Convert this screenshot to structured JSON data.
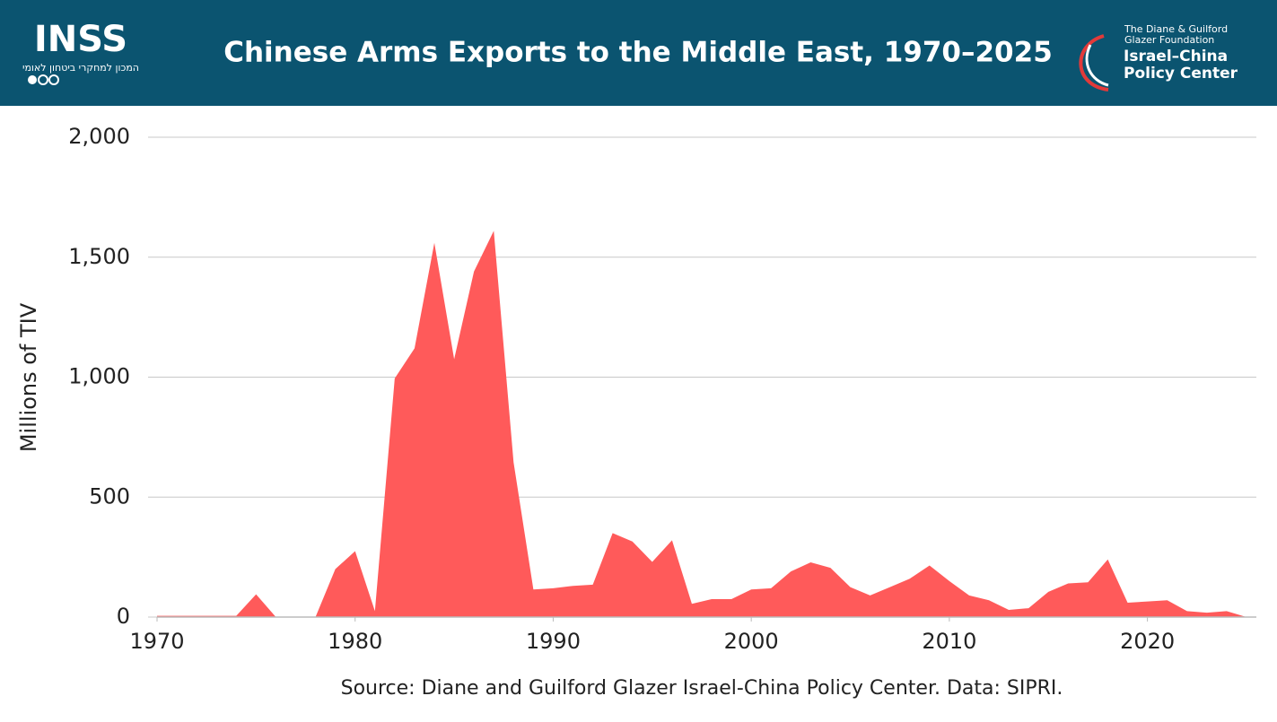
{
  "header": {
    "logo_left": "INSS",
    "logo_left_sub": "המכון למחקרי ביטחון לאומי",
    "logo_right_top": "The Diane & Guilford",
    "logo_right_top2": "Glazer Foundation",
    "logo_right_main": "Israel–China",
    "logo_right_main2": "Policy Center"
  },
  "chart_data": {
    "type": "area",
    "title": "Chinese Arms Exports to the Middle East, 1970–2025",
    "ylabel": "Millions of TIV",
    "source": "Source: Diane and Guilford Glazer Israel-China Policy Center. Data: SIPRI.",
    "x": [
      1970,
      1971,
      1972,
      1973,
      1974,
      1975,
      1976,
      1977,
      1978,
      1979,
      1980,
      1981,
      1982,
      1983,
      1984,
      1985,
      1986,
      1987,
      1988,
      1989,
      1990,
      1991,
      1992,
      1993,
      1994,
      1995,
      1996,
      1997,
      1998,
      1999,
      2000,
      2001,
      2002,
      2003,
      2004,
      2005,
      2006,
      2007,
      2008,
      2009,
      2010,
      2011,
      2012,
      2013,
      2014,
      2015,
      2016,
      2017,
      2018,
      2019,
      2020,
      2021,
      2022,
      2023,
      2024,
      2025
    ],
    "values": [
      5,
      5,
      5,
      5,
      5,
      95,
      0,
      0,
      0,
      200,
      275,
      25,
      995,
      1120,
      1560,
      1075,
      1440,
      1610,
      645,
      115,
      120,
      130,
      135,
      350,
      315,
      230,
      320,
      55,
      75,
      75,
      115,
      120,
      190,
      228,
      205,
      125,
      90,
      125,
      160,
      215,
      150,
      90,
      70,
      30,
      37,
      105,
      140,
      145,
      240,
      60,
      65,
      70,
      25,
      18,
      25,
      0
    ],
    "color": "#ff5a5a",
    "xlim": [
      1970,
      2025.5
    ],
    "xticks": [
      1970,
      1980,
      1990,
      2000,
      2010,
      2020
    ],
    "ylim": [
      0,
      2000
    ],
    "yticks": [
      0,
      500,
      {
        "value": 1000,
        "label": "1,000"
      },
      {
        "value": 1500,
        "label": "1,500"
      },
      {
        "value": 2000,
        "label": "2,000"
      }
    ],
    "grid": true
  }
}
